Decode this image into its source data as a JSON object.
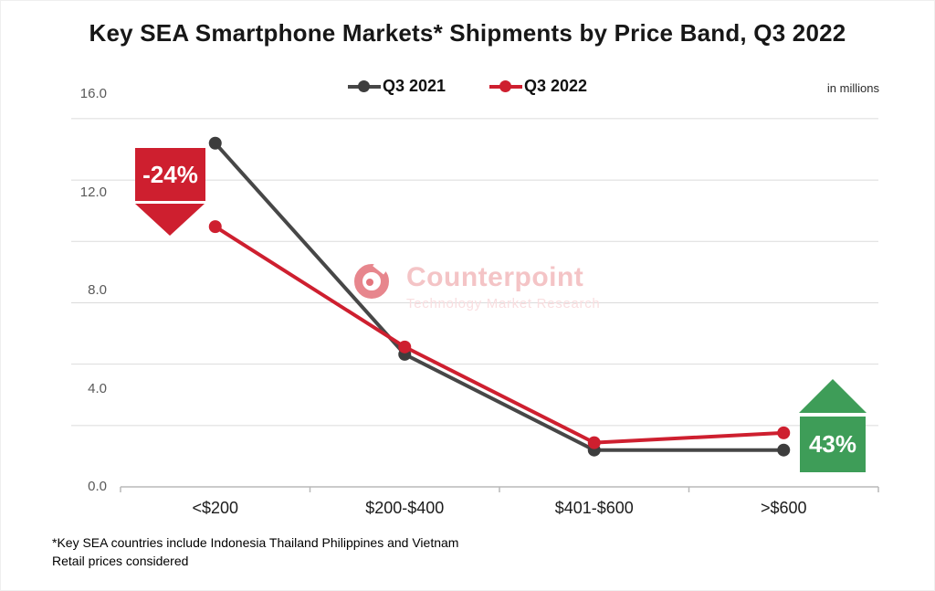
{
  "title": "Key SEA Smartphone Markets* Shipments by Price Band, Q3 2022",
  "units_note": "in millions",
  "watermark": {
    "name": "Counterpoint",
    "tagline": "Technology Market Research",
    "brand_color": "#DD535C"
  },
  "footnote": {
    "line1": "*Key SEA countries include Indonesia Thailand Philippines and Vietnam",
    "line2": "Retail prices considered"
  },
  "colors": {
    "series_gray": "#474747",
    "series_gray_marker": "#3D3D3D",
    "series_red": "#CE1F2F",
    "annotation_red": "#CE1F2F",
    "annotation_green": "#3E9D58",
    "gridline": "#DBDBDB",
    "axis": "#B9B9B9"
  },
  "chart_data": {
    "type": "line",
    "title": "Key SEA Smartphone Markets* Shipments by Price Band, Q3 2022",
    "units": "in millions",
    "categories": [
      "<$200",
      "$200-$400",
      "$401-$600",
      ">$600"
    ],
    "series": [
      {
        "name": "Q3 2021",
        "color": "#474747",
        "marker_color": "#3D3D3D",
        "values": [
          14.0,
          5.4,
          1.5,
          1.5
        ]
      },
      {
        "name": "Q3 2022",
        "color": "#CE1F2F",
        "marker_color": "#CE1F2F",
        "values": [
          10.6,
          5.7,
          1.8,
          2.2
        ]
      }
    ],
    "xlabel": "",
    "ylabel": "",
    "ylim": [
      0,
      16
    ],
    "y_ticks": [
      16.0,
      12.0,
      8.0,
      4.0,
      0.0
    ],
    "y_tick_labels": [
      "16.0",
      "12.0",
      "8.0",
      "4.0",
      "0.0"
    ],
    "gridline_values": [
      15,
      12.5,
      10,
      7.5,
      5,
      2.5
    ],
    "grid": "horizontal",
    "legend_position": "top-center",
    "annotations": [
      {
        "target": "<$200",
        "text": "-24%",
        "direction": "down",
        "color": "#CE1F2F"
      },
      {
        "target": ">$600",
        "text": "43%",
        "direction": "up",
        "color": "#3E9D58"
      }
    ]
  }
}
